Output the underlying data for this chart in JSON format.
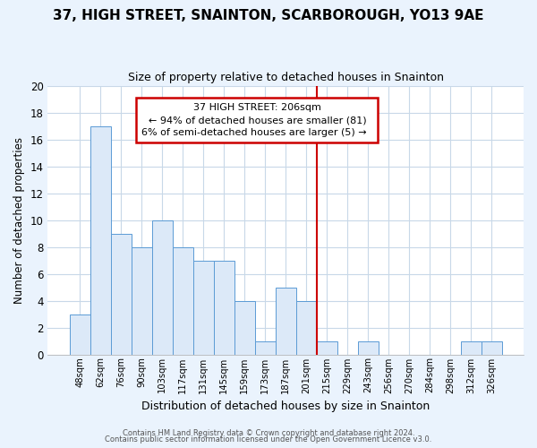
{
  "title": "37, HIGH STREET, SNAINTON, SCARBOROUGH, YO13 9AE",
  "subtitle": "Size of property relative to detached houses in Snainton",
  "xlabel": "Distribution of detached houses by size in Snainton",
  "ylabel": "Number of detached properties",
  "bar_labels": [
    "48sqm",
    "62sqm",
    "76sqm",
    "90sqm",
    "103sqm",
    "117sqm",
    "131sqm",
    "145sqm",
    "159sqm",
    "173sqm",
    "187sqm",
    "201sqm",
    "215sqm",
    "229sqm",
    "243sqm",
    "256sqm",
    "270sqm",
    "284sqm",
    "298sqm",
    "312sqm",
    "326sqm"
  ],
  "bar_values": [
    3,
    17,
    9,
    8,
    10,
    8,
    7,
    7,
    4,
    1,
    5,
    4,
    1,
    0,
    1,
    0,
    0,
    0,
    0,
    1,
    1
  ],
  "bar_color": "#dce9f8",
  "bar_edge_color": "#5b9bd5",
  "vline_color": "#cc0000",
  "annotation_title": "37 HIGH STREET: 206sqm",
  "annotation_line1": "← 94% of detached houses are smaller (81)",
  "annotation_line2": "6% of semi-detached houses are larger (5) →",
  "ylim": [
    0,
    20
  ],
  "yticks": [
    0,
    2,
    4,
    6,
    8,
    10,
    12,
    14,
    16,
    18,
    20
  ],
  "footer1": "Contains HM Land Registry data © Crown copyright and database right 2024.",
  "footer2": "Contains public sector information licensed under the Open Government Licence v3.0.",
  "grid_color": "#c8d8e8",
  "bg_color": "#eaf3fd",
  "plot_bg_color": "#ffffff",
  "title_fontsize": 11,
  "subtitle_fontsize": 9
}
